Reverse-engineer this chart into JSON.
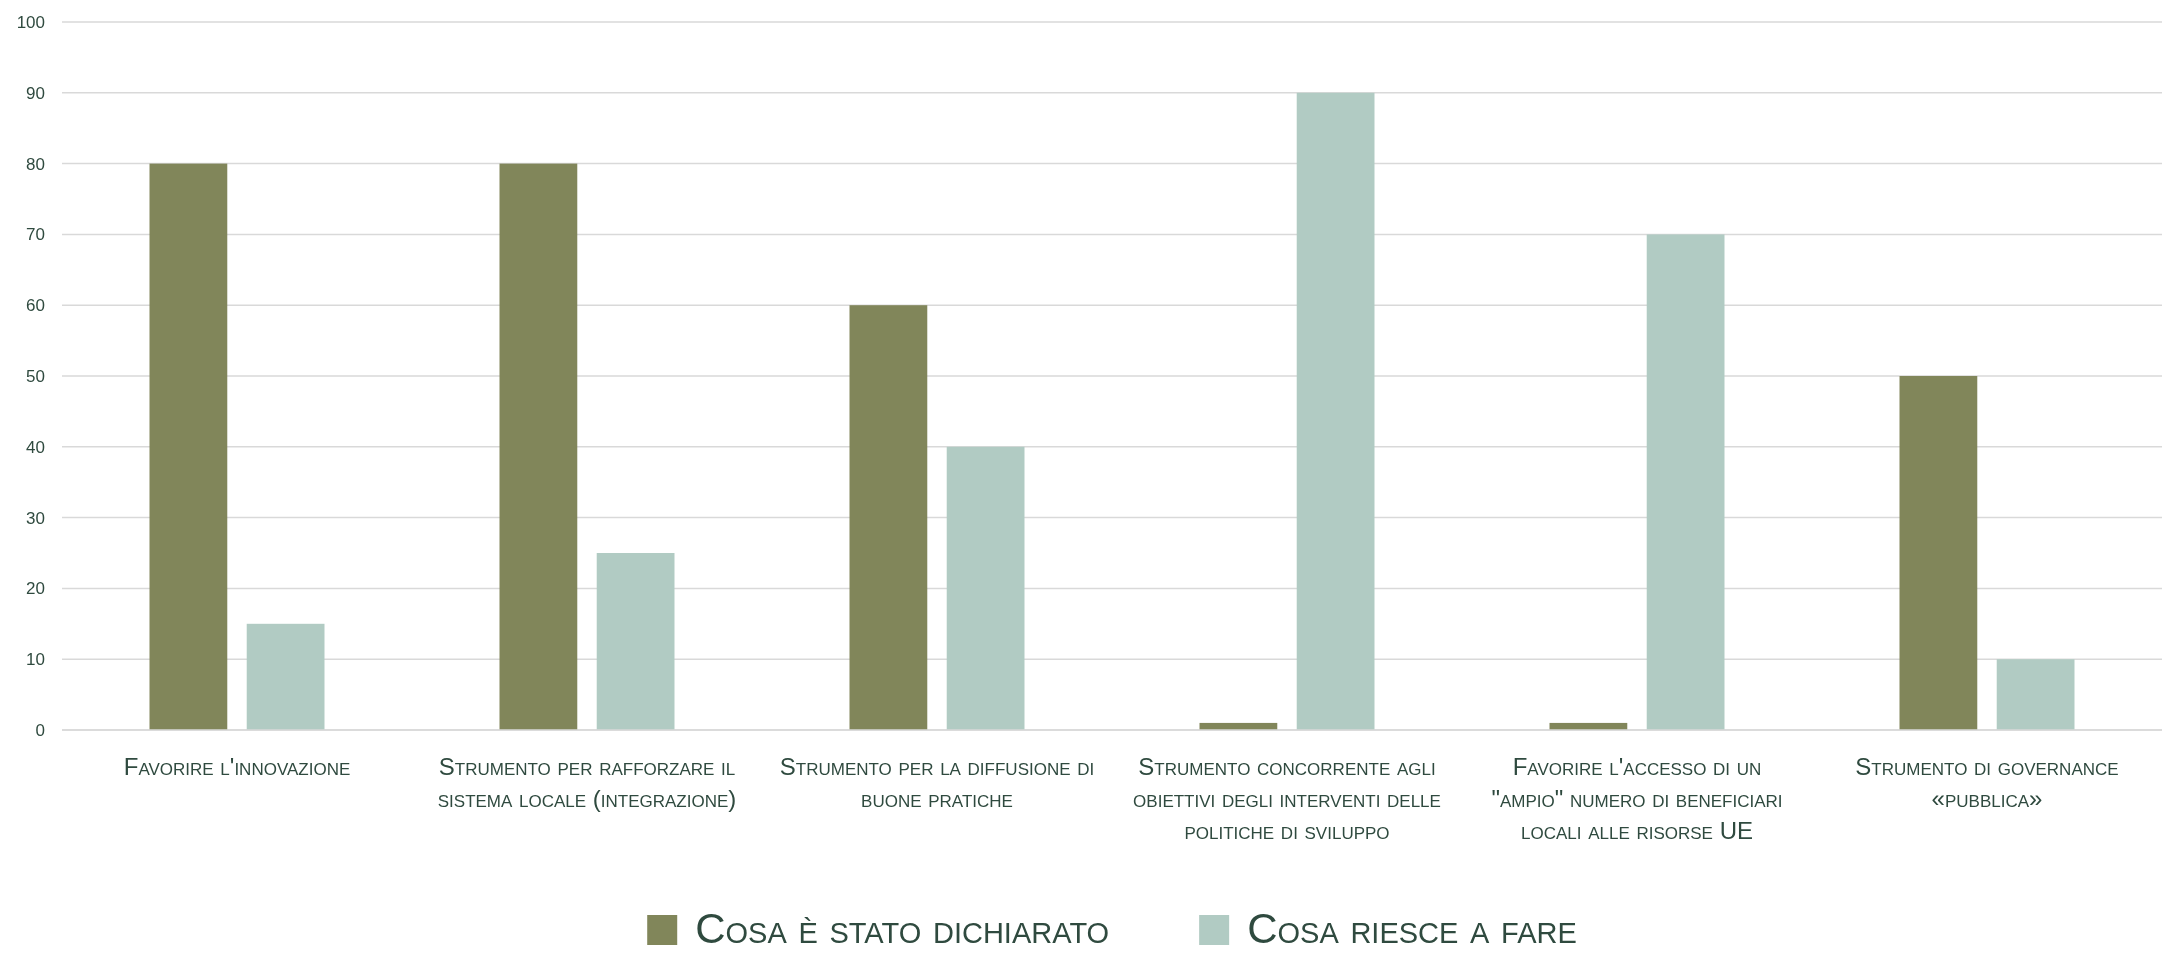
{
  "chart_data": {
    "type": "bar",
    "categories": [
      "Favorire l'innovazione",
      "Strumento per rafforzare il sistema locale (integrazione)",
      "Strumento per la diffusione di buone pratiche",
      "Strumento concorrente agli obiettivi degli interventi delle politiche di sviluppo",
      "Favorire l'accesso di un \"ampio\" numero di beneficiari locali alle risorse UE",
      "Strumento di governance «pubblica»"
    ],
    "series": [
      {
        "name": "Cosa è stato dichiarato",
        "color": "#81865a",
        "values": [
          80,
          80,
          60,
          1,
          1,
          50
        ]
      },
      {
        "name": "Cosa riesce a fare",
        "color": "#b1cbc3",
        "values": [
          15,
          25,
          40,
          90,
          70,
          10
        ]
      }
    ],
    "ylim": [
      0,
      100
    ],
    "yticks": [
      0,
      10,
      20,
      30,
      40,
      50,
      60,
      70,
      80,
      90,
      100
    ],
    "grid": "y",
    "legend": "bottom"
  }
}
